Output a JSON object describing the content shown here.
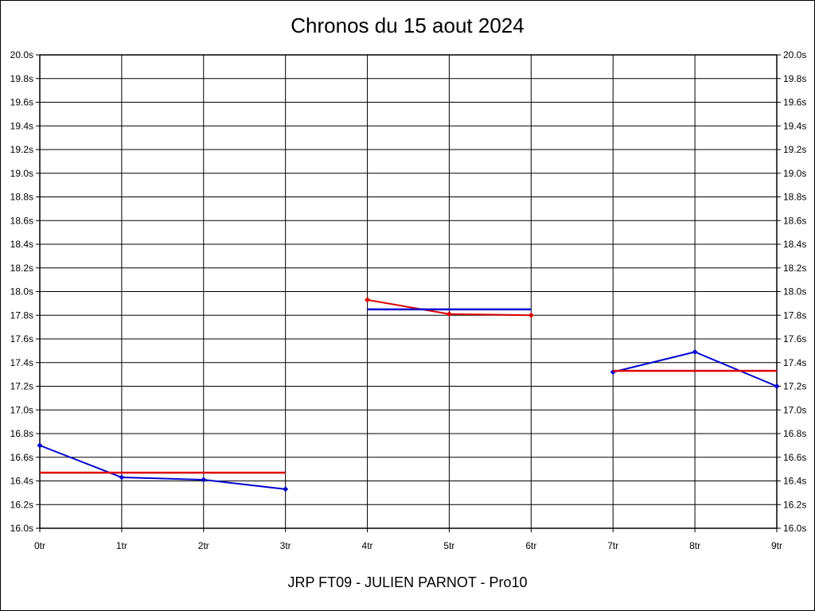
{
  "page": {
    "background": "#ffffff",
    "border_color": "#000000"
  },
  "chart_data": {
    "type": "line",
    "title": "Chronos du 15 aout 2024",
    "footer": "JRP FT09 - JULIEN PARNOT - Pro10",
    "x_ticks": [
      "0tr",
      "1tr",
      "2tr",
      "3tr",
      "4tr",
      "5tr",
      "6tr",
      "7tr",
      "8tr",
      "9tr"
    ],
    "ylim": [
      16.0,
      20.0
    ],
    "y_step": 0.2,
    "y_unit": "s",
    "grid": true,
    "grid_color": "#000000",
    "legend": "none",
    "series": [
      {
        "name": "chronos-tours-0-3",
        "color": "#0000d0",
        "marker": true,
        "width": 2,
        "points": [
          [
            0,
            16.7
          ],
          [
            1,
            16.43
          ],
          [
            2,
            16.41
          ],
          [
            3,
            16.33
          ]
        ]
      },
      {
        "name": "moyenne-tours-0-3",
        "color": "#dd0000",
        "marker": false,
        "width": 2.5,
        "points": [
          [
            0,
            16.47
          ],
          [
            3,
            16.47
          ]
        ]
      },
      {
        "name": "chronos-tours-4-6",
        "color": "#dd0000",
        "marker": true,
        "width": 2,
        "points": [
          [
            4,
            17.93
          ],
          [
            5,
            17.81
          ],
          [
            6,
            17.8
          ]
        ]
      },
      {
        "name": "moyenne-tours-4-6",
        "color": "#0000d0",
        "marker": false,
        "width": 2.5,
        "points": [
          [
            4,
            17.85
          ],
          [
            6,
            17.85
          ]
        ]
      },
      {
        "name": "chronos-tours-7-9",
        "color": "#0000d0",
        "marker": true,
        "width": 2,
        "points": [
          [
            7,
            17.32
          ],
          [
            8,
            17.49
          ],
          [
            9,
            17.2
          ]
        ]
      },
      {
        "name": "moyenne-tours-7-9",
        "color": "#dd0000",
        "marker": false,
        "width": 2.5,
        "points": [
          [
            7,
            17.33
          ],
          [
            9,
            17.33
          ]
        ]
      }
    ]
  }
}
